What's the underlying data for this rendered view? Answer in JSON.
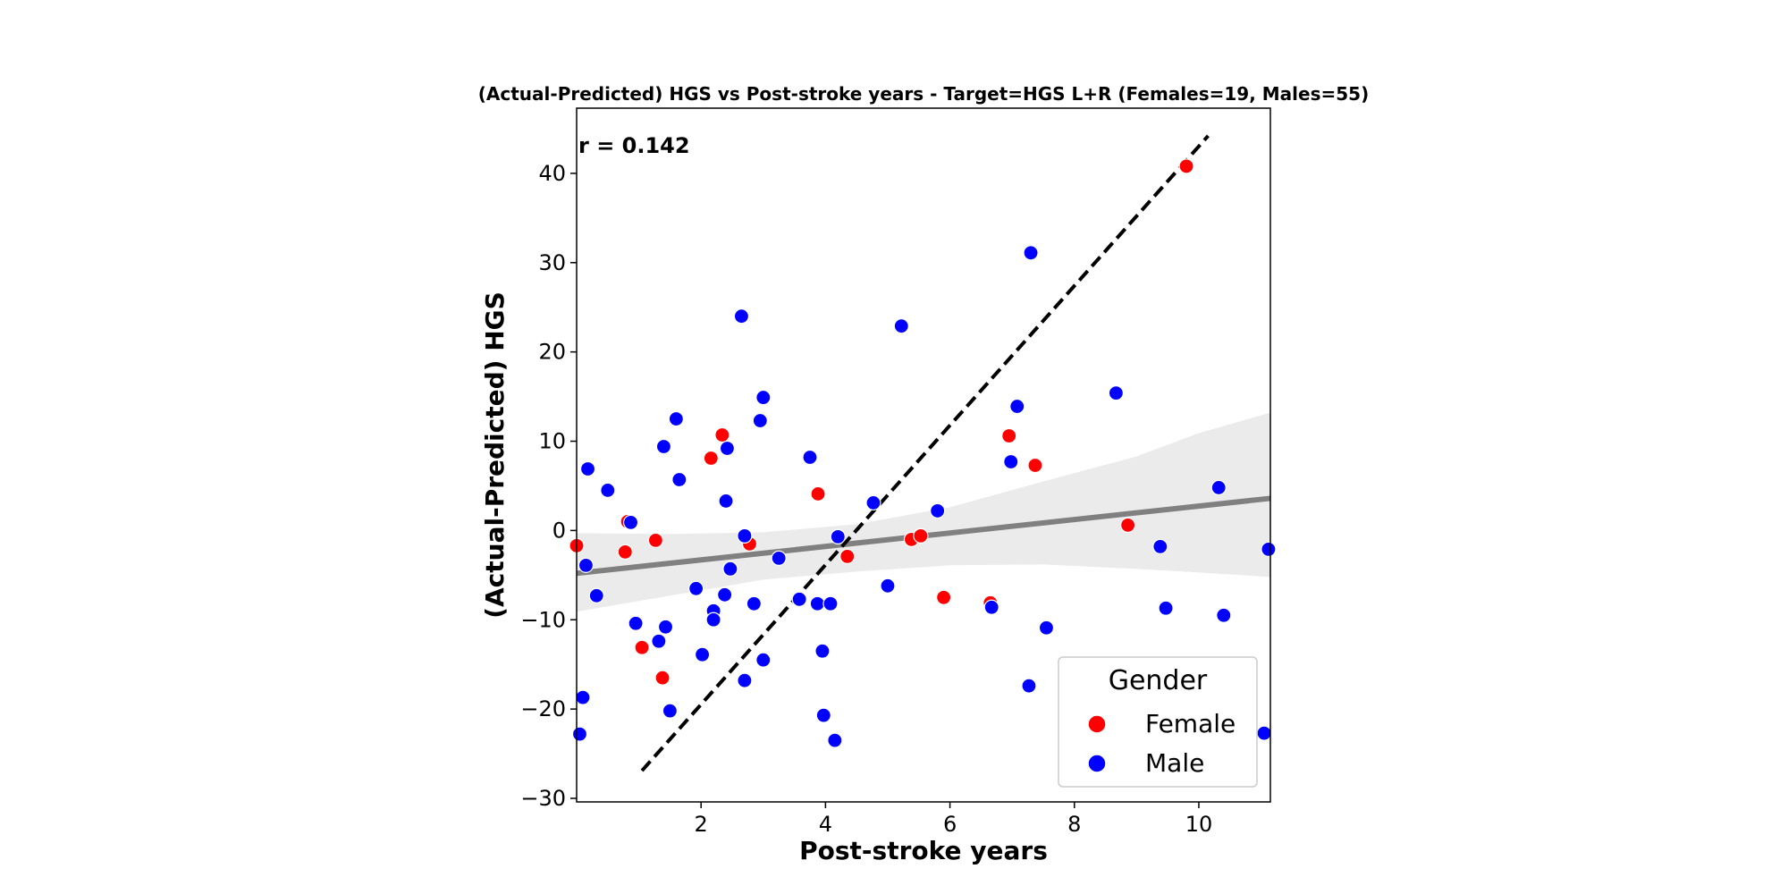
{
  "chart_data": {
    "type": "scatter",
    "title": "(Actual-Predicted) HGS vs Post-stroke years - Target=HGS L+R (Females=19, Males=55)",
    "xlabel": "Post-stroke years",
    "ylabel": "(Actual-Predicted) HGS",
    "xlim": [
      0.0,
      11.15
    ],
    "ylim": [
      -30.4,
      47.3
    ],
    "xticks": [
      2,
      4,
      6,
      8,
      10
    ],
    "yticks": [
      -30,
      -20,
      -10,
      0,
      10,
      20,
      30,
      40
    ],
    "grid": false,
    "annotation": "r = 0.142",
    "legend": {
      "title": "Gender",
      "position": "bottom-right"
    },
    "series": [
      {
        "name": "Female",
        "color": "#ff0000",
        "points": [
          [
            0.0,
            -1.7
          ],
          [
            0.82,
            1.0
          ],
          [
            0.78,
            -2.4
          ],
          [
            1.05,
            -13.1
          ],
          [
            1.27,
            -1.1
          ],
          [
            1.38,
            -16.5
          ],
          [
            2.16,
            8.1
          ],
          [
            2.34,
            10.7
          ],
          [
            2.78,
            -1.5
          ],
          [
            3.88,
            4.1
          ],
          [
            4.35,
            -2.9
          ],
          [
            5.38,
            -1.0
          ],
          [
            5.53,
            -0.6
          ],
          [
            5.9,
            -7.5
          ],
          [
            6.65,
            -8.1
          ],
          [
            6.95,
            10.6
          ],
          [
            7.37,
            7.3
          ],
          [
            8.86,
            0.6
          ],
          [
            9.8,
            40.8
          ]
        ]
      },
      {
        "name": "Male",
        "color": "#0000ff",
        "points": [
          [
            0.05,
            -22.8
          ],
          [
            0.1,
            -18.7
          ],
          [
            0.15,
            -3.9
          ],
          [
            0.18,
            6.9
          ],
          [
            0.32,
            -7.3
          ],
          [
            0.5,
            4.5
          ],
          [
            0.87,
            0.9
          ],
          [
            0.95,
            -10.4
          ],
          [
            1.32,
            -12.4
          ],
          [
            1.4,
            9.4
          ],
          [
            1.43,
            -10.8
          ],
          [
            1.5,
            -20.2
          ],
          [
            1.6,
            12.5
          ],
          [
            1.65,
            5.7
          ],
          [
            1.92,
            -6.5
          ],
          [
            2.02,
            -13.9
          ],
          [
            2.2,
            -9.0
          ],
          [
            2.2,
            -10.0
          ],
          [
            2.38,
            -7.2
          ],
          [
            2.4,
            3.3
          ],
          [
            2.42,
            9.2
          ],
          [
            2.47,
            -4.3
          ],
          [
            2.65,
            24.0
          ],
          [
            2.7,
            -16.8
          ],
          [
            2.7,
            -0.6
          ],
          [
            2.85,
            -8.2
          ],
          [
            2.95,
            12.3
          ],
          [
            3.0,
            14.9
          ],
          [
            3.0,
            -14.5
          ],
          [
            3.25,
            -3.1
          ],
          [
            3.58,
            -7.7
          ],
          [
            3.75,
            8.2
          ],
          [
            3.87,
            -8.2
          ],
          [
            3.95,
            -13.5
          ],
          [
            3.97,
            -20.7
          ],
          [
            4.08,
            -8.2
          ],
          [
            4.15,
            -23.5
          ],
          [
            4.2,
            -0.7
          ],
          [
            4.77,
            3.1
          ],
          [
            5.0,
            -6.2
          ],
          [
            5.22,
            22.9
          ],
          [
            5.8,
            2.2
          ],
          [
            6.67,
            -8.6
          ],
          [
            6.98,
            7.7
          ],
          [
            7.08,
            13.9
          ],
          [
            7.3,
            31.1
          ],
          [
            7.27,
            -17.4
          ],
          [
            7.55,
            -10.9
          ],
          [
            8.67,
            15.4
          ],
          [
            9.38,
            -1.8
          ],
          [
            9.47,
            -8.7
          ],
          [
            10.32,
            4.8
          ],
          [
            10.4,
            -9.5
          ],
          [
            11.05,
            -22.7
          ],
          [
            11.12,
            -2.1
          ]
        ]
      }
    ],
    "regression": {
      "color": "#808080",
      "line": [
        [
          0.0,
          -4.8
        ],
        [
          11.15,
          3.6
        ]
      ],
      "ci_upper": [
        [
          0.0,
          -0.3
        ],
        [
          1.5,
          -0.4
        ],
        [
          3.0,
          -0.2
        ],
        [
          4.5,
          0.7
        ],
        [
          6.0,
          2.6
        ],
        [
          7.5,
          5.5
        ],
        [
          9.0,
          8.3
        ],
        [
          10.0,
          10.9
        ],
        [
          11.15,
          13.2
        ]
      ],
      "ci_lower": [
        [
          0.0,
          -9.1
        ],
        [
          1.5,
          -7.3
        ],
        [
          3.0,
          -5.5
        ],
        [
          4.5,
          -4.6
        ],
        [
          6.0,
          -3.9
        ],
        [
          7.5,
          -3.8
        ],
        [
          9.0,
          -4.3
        ],
        [
          10.0,
          -4.7
        ],
        [
          11.15,
          -5.2
        ]
      ]
    },
    "identity_line": {
      "color": "#000000",
      "line": [
        [
          1.05,
          -26.9
        ],
        [
          10.15,
          44.2
        ]
      ]
    }
  }
}
